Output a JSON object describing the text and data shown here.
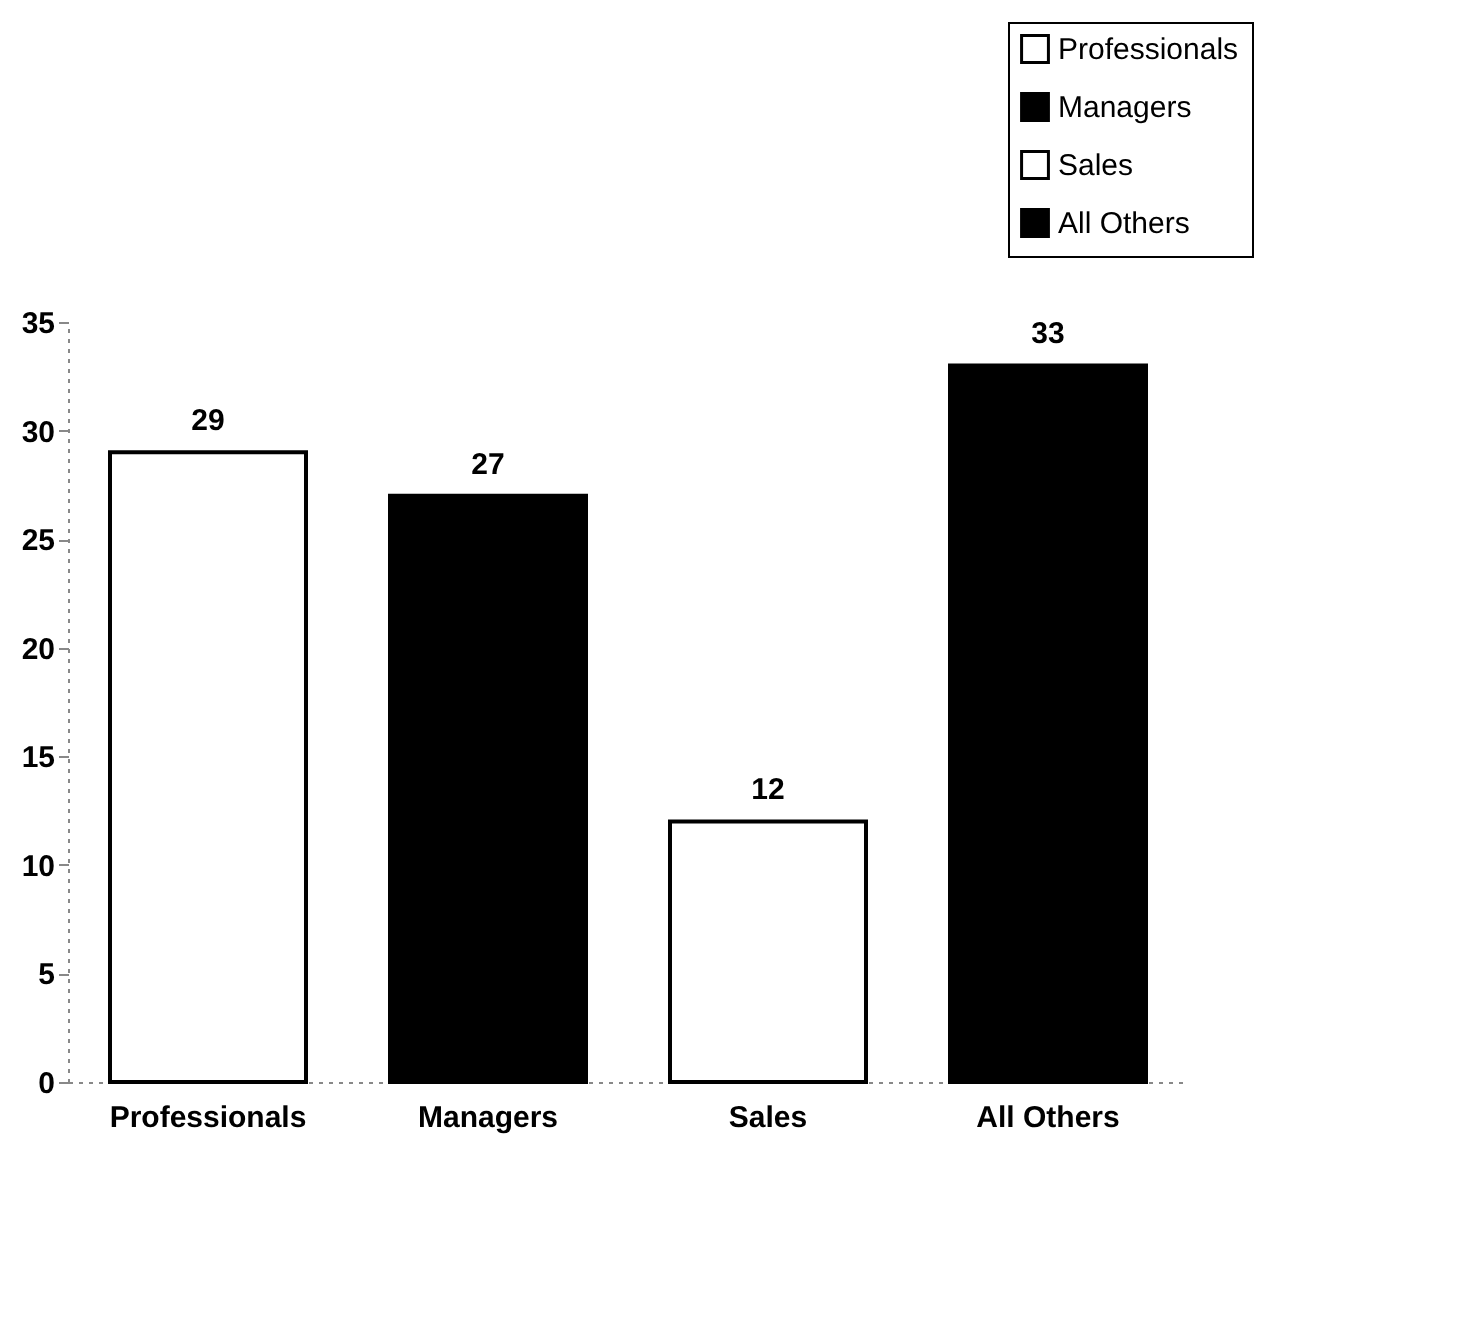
{
  "chart_data": {
    "type": "bar",
    "categories": [
      "Professionals",
      "Managers",
      "Sales",
      "All Others"
    ],
    "series": [
      {
        "name": "Professionals",
        "color": "#ffffff",
        "values": [
          29,
          null,
          null,
          null
        ]
      },
      {
        "name": "Managers",
        "color": "#000000",
        "values": [
          null,
          27,
          null,
          null
        ]
      },
      {
        "name": "Sales",
        "color": "#ffffff",
        "values": [
          null,
          null,
          12,
          null
        ]
      },
      {
        "name": "All Others",
        "color": "#000000",
        "values": [
          null,
          null,
          null,
          33
        ]
      }
    ],
    "stacked": true,
    "ylim": [
      0,
      35
    ],
    "yticks": [
      0,
      5,
      10,
      15,
      20,
      25,
      30,
      35
    ],
    "data_labels": true,
    "legend": "top right",
    "grid": false
  }
}
